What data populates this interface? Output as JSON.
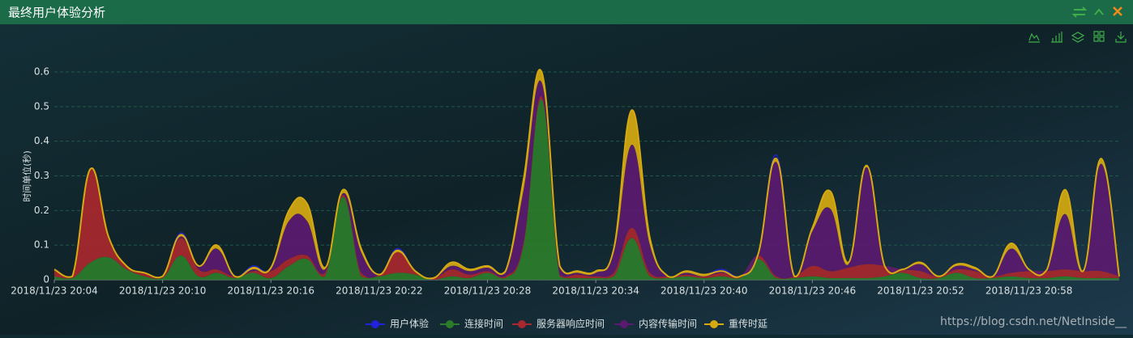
{
  "chart_data": {
    "type": "area",
    "title": "最终用户体验分析",
    "y_label": "时间单位(秒)",
    "watermark": "https://blog.csdn.net/NetInside__",
    "categories": [
      "2018/11/23 20:04",
      null,
      null,
      null,
      null,
      null,
      "2018/11/23 20:10",
      null,
      null,
      null,
      null,
      null,
      "2018/11/23 20:16",
      null,
      null,
      null,
      null,
      null,
      "2018/11/23 20:22",
      null,
      null,
      null,
      null,
      null,
      "2018/11/23 20:28",
      null,
      null,
      null,
      null,
      null,
      "2018/11/23 20:34",
      null,
      null,
      null,
      null,
      null,
      "2018/11/23 20:40",
      null,
      null,
      null,
      null,
      null,
      "2018/11/23 20:46",
      null,
      null,
      null,
      null,
      null,
      "2018/11/23 20:52",
      null,
      null,
      null,
      null,
      null,
      "2018/11/23 20:58",
      null,
      null,
      null,
      null,
      null
    ],
    "ylim": [
      0,
      0.6
    ],
    "yticks": [
      0,
      0.1,
      0.2,
      0.3,
      0.4,
      0.5,
      0.6
    ],
    "grid": true,
    "stacked": true,
    "legend": "bottom",
    "series": [
      {
        "name": "用户体验",
        "color": "#2222dd",
        "type": "line",
        "values": [
          0.03,
          0.01,
          0.32,
          0.125,
          0.04,
          0.02,
          0.01,
          0.135,
          0.04,
          0.1,
          0.01,
          0.04,
          0.035,
          0.2,
          0.22,
          0.035,
          0.26,
          0.09,
          0.015,
          0.09,
          0.025,
          0.005,
          0.05,
          0.03,
          0.04,
          0.025,
          0.29,
          0.6,
          0.04,
          0.025,
          0.025,
          0.09,
          0.49,
          0.12,
          0.01,
          0.025,
          0.015,
          0.03,
          0.01,
          0.075,
          0.36,
          0.01,
          0.15,
          0.255,
          0.05,
          0.33,
          0.04,
          0.03,
          0.05,
          0.01,
          0.045,
          0.035,
          0.01,
          0.105,
          0.03,
          0.03,
          0.26,
          0.025,
          0.35,
          0.01
        ]
      },
      {
        "name": "连接时间",
        "color": "#2b7d2b",
        "type": "area",
        "values": [
          0.01,
          0.005,
          0.05,
          0.065,
          0.03,
          0.01,
          0.005,
          0.07,
          0.01,
          0.02,
          0.005,
          0.02,
          0.005,
          0.04,
          0.06,
          0.01,
          0.24,
          0.01,
          0.01,
          0.02,
          0.015,
          0,
          0.01,
          0.005,
          0.02,
          0.005,
          0.1,
          0.52,
          0.01,
          0.005,
          0.005,
          0.01,
          0.12,
          0.01,
          0.005,
          0.01,
          0.005,
          0.01,
          0.005,
          0.06,
          0.005,
          0.005,
          0.01,
          0.005,
          0.005,
          0.005,
          0.01,
          0.02,
          0.005,
          0.005,
          0.02,
          0.005,
          0.005,
          0.01,
          0.005,
          0.005,
          0.01,
          0.005,
          0.005,
          0.005
        ]
      },
      {
        "name": "服务器响应时间",
        "color": "#a8282e",
        "type": "area",
        "values": [
          0.02,
          0.005,
          0.27,
          0.06,
          0.01,
          0.01,
          0.005,
          0.05,
          0.02,
          0.01,
          0.005,
          0.005,
          0.02,
          0.02,
          0.01,
          0.01,
          0.005,
          0.01,
          0.005,
          0.06,
          0.01,
          0.005,
          0.02,
          0.01,
          0.005,
          0.005,
          0.01,
          0.01,
          0.005,
          0.01,
          0.005,
          0.01,
          0.03,
          0.01,
          0.005,
          0.005,
          0.005,
          0.01,
          0.005,
          0.01,
          0.005,
          0.005,
          0.03,
          0.02,
          0.03,
          0.04,
          0.03,
          0.01,
          0.02,
          0.005,
          0.01,
          0.02,
          0.005,
          0.01,
          0.02,
          0.02,
          0.02,
          0.02,
          0.02,
          0.005
        ]
      },
      {
        "name": "内容传输时间",
        "color": "#5b1a70",
        "type": "area",
        "values": [
          0,
          0,
          0,
          0,
          0,
          0,
          0,
          0.005,
          0.01,
          0.06,
          0,
          0.005,
          0.005,
          0.11,
          0.1,
          0.01,
          0.005,
          0.06,
          0,
          0,
          0,
          0,
          0.01,
          0.01,
          0.01,
          0.01,
          0.15,
          0.04,
          0.02,
          0.005,
          0.01,
          0.06,
          0.24,
          0.08,
          0,
          0.005,
          0,
          0.005,
          0,
          0.005,
          0.33,
          0,
          0.1,
          0.18,
          0.01,
          0.28,
          0,
          0,
          0.02,
          0,
          0.01,
          0.005,
          0,
          0.07,
          0.005,
          0.005,
          0.16,
          0,
          0.31,
          0
        ]
      },
      {
        "name": "重传时延",
        "color": "#d6aa10",
        "type": "area",
        "values": [
          0,
          0,
          0,
          0,
          0,
          0,
          0,
          0.005,
          0,
          0.01,
          0,
          0.005,
          0.005,
          0.03,
          0.05,
          0.005,
          0.01,
          0.01,
          0,
          0.005,
          0,
          0,
          0.01,
          0.005,
          0.005,
          0.005,
          0.03,
          0.03,
          0.005,
          0.005,
          0.005,
          0.01,
          0.1,
          0.02,
          0,
          0.005,
          0.005,
          0,
          0,
          0,
          0.01,
          0,
          0.01,
          0.05,
          0.005,
          0.005,
          0,
          0,
          0.005,
          0,
          0.005,
          0.005,
          0,
          0.015,
          0,
          0,
          0.07,
          0,
          0.015,
          0
        ]
      }
    ]
  }
}
